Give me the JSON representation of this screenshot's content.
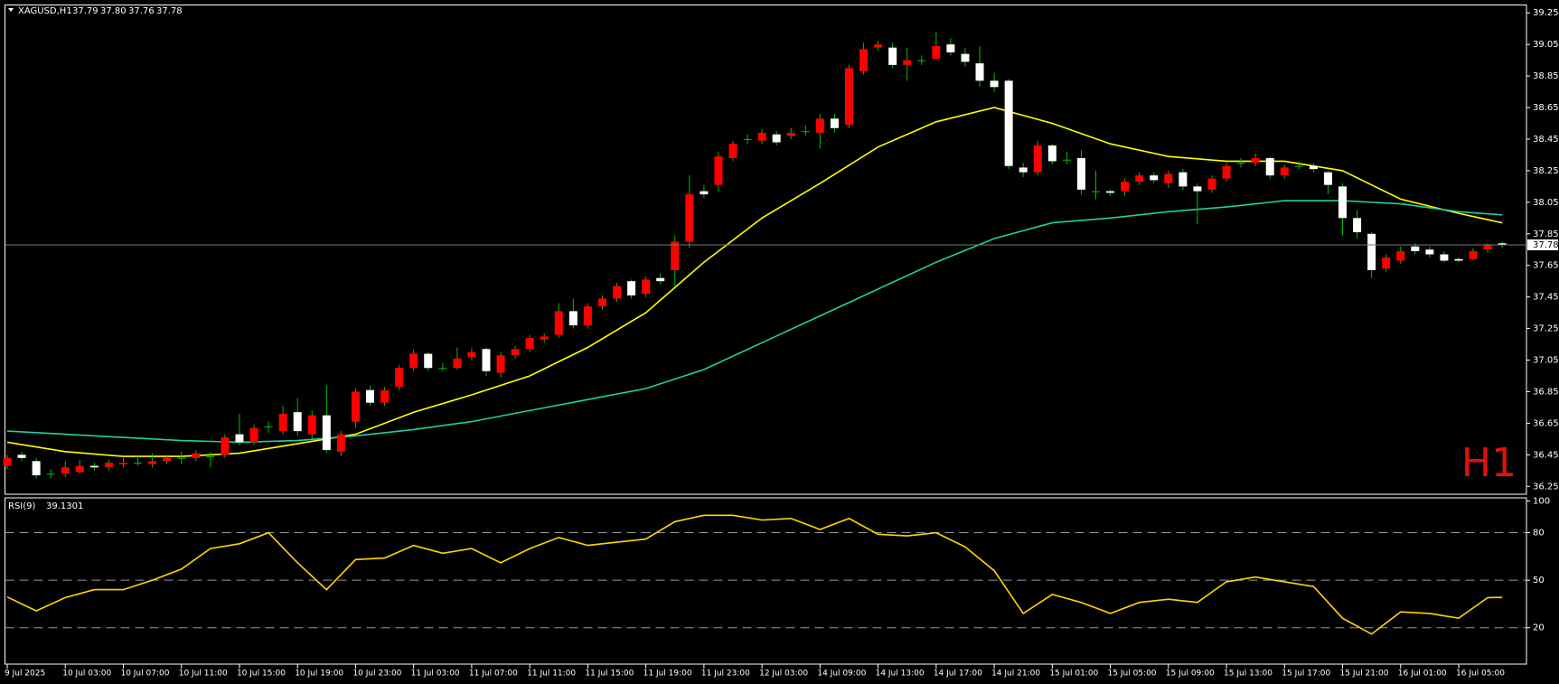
{
  "chart_data": [
    {
      "type": "candlestick",
      "title": "XAGUSD,H1",
      "ohlc_labels": [
        "37.79",
        "37.80",
        "37.76",
        "37.78"
      ],
      "annotation": "H1",
      "categories": [
        "9 Jul 2025",
        null,
        null,
        null,
        "10 Jul 03:00",
        null,
        null,
        null,
        "10 Jul 07:00",
        null,
        null,
        null,
        "10 Jul 11:00",
        null,
        null,
        null,
        "10 Jul 15:00",
        null,
        null,
        null,
        "10 Jul 19:00",
        null,
        null,
        null,
        "10 Jul 23:00",
        null,
        null,
        null,
        "11 Jul 03:00",
        null,
        null,
        null,
        "11 Jul 07:00",
        null,
        null,
        null,
        "11 Jul 11:00",
        null,
        null,
        null,
        "11 Jul 15:00",
        null,
        null,
        null,
        "11 Jul 19:00",
        null,
        null,
        null,
        "11 Jul 23:00",
        null,
        null,
        null,
        "12 Jul 03:00",
        null,
        null,
        null,
        "14 Jul 09:00",
        null,
        null,
        null,
        "14 Jul 13:00",
        null,
        null,
        null,
        "14 Jul 17:00",
        null,
        null,
        null,
        "14 Jul 21:00",
        null,
        null,
        null,
        "15 Jul 01:00",
        null,
        null,
        null,
        "15 Jul 05:00",
        null,
        null,
        null,
        "15 Jul 09:00",
        null,
        null,
        null,
        "15 Jul 13:00",
        null,
        null,
        null,
        "15 Jul 17:00",
        null,
        null,
        null,
        "15 Jul 21:00",
        null,
        null,
        null,
        "16 Jul 01:00",
        null,
        null,
        null,
        "16 Jul 05:00",
        null,
        null,
        null
      ],
      "open": [
        36.38,
        36.45,
        36.41,
        36.33,
        36.33,
        36.34,
        36.38,
        36.37,
        36.39,
        36.4,
        36.39,
        36.41,
        36.43,
        36.43,
        36.44,
        36.45,
        36.58,
        36.53,
        36.63,
        36.6,
        36.72,
        36.58,
        36.7,
        36.47,
        36.66,
        36.86,
        36.78,
        36.88,
        37.0,
        37.09,
        37.0,
        37.0,
        37.07,
        37.12,
        36.97,
        37.08,
        37.12,
        37.18,
        37.21,
        37.36,
        37.27,
        37.39,
        37.44,
        37.55,
        37.47,
        37.57,
        37.62,
        37.8,
        38.12,
        38.16,
        38.33,
        38.45,
        38.44,
        38.48,
        38.47,
        38.5,
        38.49,
        38.58,
        38.54,
        38.88,
        39.03,
        39.03,
        38.92,
        38.95,
        38.96,
        39.05,
        38.99,
        38.93,
        38.82,
        38.82,
        38.27,
        38.24,
        38.41,
        38.32,
        38.33,
        38.12,
        38.12,
        38.12,
        38.18,
        38.22,
        38.17,
        38.24,
        38.15,
        38.13,
        38.2,
        38.3,
        38.3,
        38.33,
        38.22,
        38.28,
        38.28,
        38.24,
        38.15,
        37.95,
        37.85,
        37.63,
        37.68,
        37.77,
        37.75,
        37.72,
        37.69,
        37.69,
        37.75,
        37.79
      ],
      "high": [
        36.45,
        36.47,
        36.43,
        36.36,
        36.41,
        36.42,
        36.4,
        36.42,
        36.43,
        36.44,
        36.46,
        36.45,
        36.47,
        36.48,
        36.47,
        36.58,
        36.71,
        36.64,
        36.66,
        36.76,
        36.81,
        36.73,
        36.89,
        36.6,
        36.87,
        36.89,
        36.88,
        37.02,
        37.12,
        37.1,
        37.03,
        37.13,
        37.13,
        37.13,
        37.1,
        37.14,
        37.21,
        37.22,
        37.41,
        37.44,
        37.41,
        37.46,
        37.54,
        37.56,
        37.58,
        37.6,
        37.84,
        38.22,
        38.16,
        38.37,
        38.44,
        38.48,
        38.51,
        38.5,
        38.52,
        38.54,
        38.61,
        38.61,
        38.92,
        39.06,
        39.07,
        39.06,
        39.03,
        38.98,
        39.13,
        39.09,
        39.03,
        39.04,
        38.87,
        38.83,
        38.3,
        38.44,
        38.42,
        38.37,
        38.38,
        38.25,
        38.13,
        38.2,
        38.24,
        38.24,
        38.25,
        38.26,
        38.17,
        38.22,
        38.3,
        38.33,
        38.36,
        38.34,
        38.29,
        38.31,
        38.3,
        38.25,
        38.17,
        38.0,
        37.86,
        37.72,
        37.77,
        37.79,
        37.77,
        37.74,
        37.7,
        37.76,
        37.79,
        37.8
      ],
      "low": [
        36.36,
        36.41,
        36.3,
        36.3,
        36.31,
        36.33,
        36.35,
        36.35,
        36.37,
        36.38,
        36.37,
        36.39,
        36.39,
        36.41,
        36.37,
        36.43,
        36.51,
        36.51,
        36.59,
        36.58,
        36.57,
        36.55,
        36.46,
        36.44,
        36.62,
        36.76,
        36.76,
        36.86,
        36.98,
        36.98,
        36.98,
        36.99,
        37.05,
        36.95,
        36.94,
        37.06,
        37.1,
        37.16,
        37.19,
        37.25,
        37.25,
        37.37,
        37.42,
        37.44,
        37.45,
        37.53,
        37.52,
        37.76,
        38.08,
        38.12,
        38.31,
        38.42,
        38.42,
        38.41,
        38.45,
        38.47,
        38.39,
        38.49,
        38.52,
        38.86,
        39.01,
        38.9,
        38.82,
        38.92,
        38.95,
        38.98,
        38.91,
        38.78,
        38.75,
        38.26,
        38.21,
        38.22,
        38.29,
        38.29,
        38.1,
        38.07,
        38.09,
        38.09,
        38.16,
        38.17,
        38.14,
        38.13,
        37.91,
        38.11,
        38.18,
        38.27,
        38.28,
        38.2,
        38.2,
        38.26,
        38.24,
        38.1,
        37.84,
        37.82,
        37.57,
        37.61,
        37.66,
        37.72,
        37.7,
        37.67,
        37.67,
        37.68,
        37.73,
        37.76
      ],
      "close": [
        36.43,
        36.43,
        36.32,
        36.33,
        36.37,
        36.38,
        36.37,
        36.4,
        36.4,
        36.4,
        36.41,
        36.43,
        36.43,
        36.46,
        36.44,
        36.56,
        36.53,
        36.62,
        36.63,
        36.71,
        36.6,
        36.7,
        36.48,
        36.58,
        36.85,
        36.78,
        36.86,
        37.0,
        37.09,
        37.0,
        37.0,
        37.06,
        37.1,
        36.98,
        37.08,
        37.12,
        37.19,
        37.2,
        37.36,
        37.27,
        37.39,
        37.44,
        37.52,
        37.46,
        37.56,
        37.55,
        37.8,
        38.1,
        38.1,
        38.34,
        38.42,
        38.45,
        38.49,
        38.43,
        38.49,
        38.5,
        38.58,
        38.52,
        38.9,
        39.02,
        39.05,
        38.92,
        38.95,
        38.95,
        39.04,
        39.0,
        38.94,
        38.82,
        38.78,
        38.28,
        38.24,
        38.41,
        38.31,
        38.32,
        38.13,
        38.12,
        38.11,
        38.18,
        38.22,
        38.19,
        38.23,
        38.15,
        38.12,
        38.2,
        38.28,
        38.3,
        38.33,
        38.22,
        38.27,
        38.28,
        38.26,
        38.16,
        37.95,
        37.86,
        37.62,
        37.7,
        37.74,
        37.74,
        37.72,
        37.68,
        37.68,
        37.74,
        37.78,
        37.78
      ],
      "up_color": "#ff0000",
      "down_color": "#ffffff",
      "wick_color": "#00c000",
      "price_line_color": "#6d7a86",
      "overlays": [
        {
          "color": "#ffff00",
          "x": [
            0,
            4,
            8,
            12,
            16,
            20,
            24,
            28,
            32,
            36,
            40,
            44,
            48,
            52,
            56,
            60,
            64,
            68,
            72,
            76,
            80,
            84,
            88,
            92,
            96,
            100,
            103
          ],
          "values": [
            36.53,
            36.47,
            36.44,
            36.44,
            36.46,
            36.52,
            36.58,
            36.72,
            36.83,
            36.95,
            37.13,
            37.35,
            37.67,
            37.95,
            38.17,
            38.4,
            38.56,
            38.65,
            38.55,
            38.42,
            38.34,
            38.31,
            38.31,
            38.25,
            38.07,
            37.98,
            37.92
          ]
        },
        {
          "color": "#20d0a0",
          "x": [
            0,
            4,
            8,
            12,
            16,
            20,
            24,
            28,
            32,
            36,
            40,
            44,
            48,
            52,
            56,
            60,
            64,
            68,
            72,
            76,
            80,
            84,
            88,
            92,
            96,
            100,
            103
          ],
          "values": [
            36.6,
            36.58,
            36.56,
            36.54,
            36.53,
            36.54,
            36.57,
            36.61,
            36.66,
            36.73,
            36.8,
            36.87,
            36.99,
            37.16,
            37.33,
            37.5,
            37.67,
            37.82,
            37.92,
            37.95,
            37.99,
            38.02,
            38.06,
            38.06,
            38.04,
            37.99,
            37.97
          ]
        }
      ],
      "ylim": [
        36.2,
        39.3
      ],
      "yticks": [
        39.25,
        39.05,
        38.85,
        38.65,
        38.45,
        38.25,
        38.05,
        37.85,
        37.65,
        37.45,
        37.25,
        37.05,
        36.85,
        36.65,
        36.45,
        36.25
      ]
    },
    {
      "type": "line",
      "series": [
        {
          "name": "RSI(9)",
          "color": "#ffd700",
          "x": [
            0,
            2,
            4,
            6,
            8,
            10,
            12,
            14,
            16,
            18,
            20,
            22,
            24,
            26,
            28,
            30,
            32,
            34,
            36,
            38,
            40,
            42,
            44,
            46,
            48,
            50,
            52,
            54,
            56,
            58,
            60,
            62,
            64,
            66,
            68,
            70,
            72,
            74,
            76,
            78,
            80,
            82,
            84,
            86,
            88,
            90,
            92,
            94,
            96,
            98,
            100,
            102,
            103
          ],
          "values": [
            39.4,
            30.6,
            39,
            44,
            44,
            50,
            57,
            70,
            73,
            80,
            61,
            44,
            63,
            64,
            72,
            67,
            70,
            61,
            70,
            77,
            72,
            74,
            76,
            87,
            91,
            91,
            88,
            89,
            82,
            89,
            79,
            78,
            80,
            71,
            56,
            29,
            41,
            36,
            29,
            36,
            38,
            36,
            49,
            52,
            49,
            46,
            26,
            16,
            30,
            29,
            26,
            39,
            39.1301
          ]
        }
      ],
      "ylim": [
        -3,
        102
      ],
      "yticks": [
        100,
        80,
        50,
        20
      ],
      "levels": [
        80,
        50,
        20
      ]
    }
  ]
}
